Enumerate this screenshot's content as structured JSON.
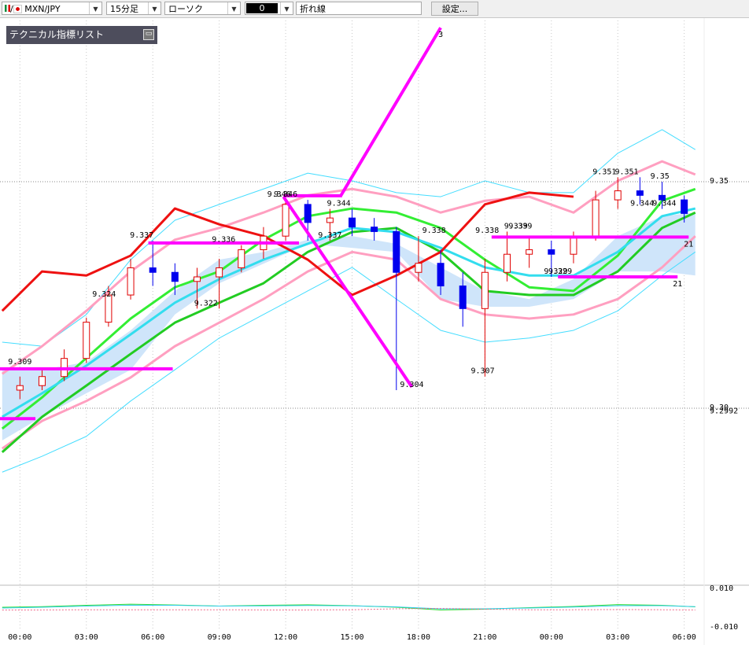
{
  "toolbar": {
    "pair": "MXN/JPY",
    "timeframe": "15分足",
    "chart_style": "ローソク",
    "number": "0",
    "line_tool": "折れ線",
    "settings": "設定..."
  },
  "panel": {
    "title": "テクニカル指標リスト"
  },
  "chart_data": {
    "type": "candlestick",
    "xlim": [
      -0.9,
      30.9
    ],
    "xticks": [
      {
        "value": 0,
        "label": "00:00"
      },
      {
        "value": 3,
        "label": "03:00"
      },
      {
        "value": 6,
        "label": "06:00"
      },
      {
        "value": 9,
        "label": "09:00"
      },
      {
        "value": 12,
        "label": "12:00"
      },
      {
        "value": 15,
        "label": "15:00"
      },
      {
        "value": 18,
        "label": "18:00"
      },
      {
        "value": 21,
        "label": "21:00"
      },
      {
        "value": 24,
        "label": "00:00"
      },
      {
        "value": 27,
        "label": "03:00"
      },
      {
        "value": 30,
        "label": "06:00"
      }
    ],
    "ylim": [
      9.2625,
      9.3863
    ],
    "yticks": [
      9.35,
      {
        "value": 9.3,
        "label": "9.30"
      }
    ],
    "last_price": 9.2992,
    "grid": true,
    "up_color": "#e00000",
    "down_color": "#0000ee",
    "candles": {
      "x": [
        0,
        1,
        2,
        3,
        4,
        5,
        6,
        7,
        8,
        9,
        10,
        11,
        12,
        13,
        14,
        15,
        16,
        17,
        18,
        19,
        20,
        21,
        22,
        23,
        24,
        25,
        26,
        27,
        28,
        29,
        30
      ],
      "open": [
        9.304,
        9.305,
        9.307,
        9.311,
        9.319,
        9.325,
        9.331,
        9.33,
        9.328,
        9.329,
        9.331,
        9.335,
        9.338,
        9.345,
        9.341,
        9.342,
        9.34,
        9.339,
        9.33,
        9.332,
        9.327,
        9.322,
        9.33,
        9.334,
        9.335,
        9.334,
        9.338,
        9.346,
        9.348,
        9.347,
        9.346
      ],
      "high": [
        9.307,
        9.309,
        9.313,
        9.32,
        9.327,
        9.333,
        9.337,
        9.332,
        9.331,
        9.333,
        9.336,
        9.34,
        9.346,
        9.346,
        9.344,
        9.344,
        9.342,
        9.34,
        9.338,
        9.335,
        9.33,
        9.333,
        9.339,
        9.338,
        9.337,
        9.339,
        9.348,
        9.351,
        9.351,
        9.35,
        9.347
      ],
      "low": [
        9.302,
        9.304,
        9.306,
        9.31,
        9.318,
        9.324,
        9.327,
        9.325,
        9.322,
        9.322,
        9.33,
        9.333,
        9.337,
        9.337,
        9.337,
        9.338,
        9.337,
        9.304,
        9.328,
        9.325,
        9.318,
        9.307,
        9.328,
        9.331,
        9.329,
        9.332,
        9.337,
        9.344,
        9.345,
        9.344,
        9.341
      ],
      "close": [
        9.305,
        9.307,
        9.311,
        9.319,
        9.325,
        9.331,
        9.33,
        9.328,
        9.329,
        9.331,
        9.335,
        9.338,
        9.345,
        9.341,
        9.342,
        9.34,
        9.339,
        9.33,
        9.332,
        9.327,
        9.322,
        9.33,
        9.334,
        9.335,
        9.334,
        9.338,
        9.346,
        9.348,
        9.347,
        9.346,
        9.343
      ]
    },
    "lines": {
      "x": [
        -0.8,
        1,
        3,
        5,
        7,
        9,
        11,
        13,
        15,
        17,
        19,
        21,
        23,
        25,
        27,
        29,
        30.5
      ],
      "series": [
        {
          "color": "#44ddff",
          "width": 1,
          "values": [
            9.3146,
            9.3137,
            9.3207,
            9.3328,
            9.3415,
            9.345,
            9.3484,
            9.3519,
            9.3502,
            9.3476,
            9.3467,
            9.3502,
            9.3476,
            9.3476,
            9.3563,
            9.3615,
            9.3571
          ]
        },
        {
          "color": "#44ddff",
          "width": 1,
          "values": [
            9.2859,
            9.2894,
            9.2938,
            9.3016,
            9.3085,
            9.3155,
            9.3207,
            9.3259,
            9.3311,
            9.3241,
            9.3172,
            9.3146,
            9.3155,
            9.3172,
            9.3215,
            9.3293,
            9.3345
          ]
        },
        {
          "color": "#ff9fc0",
          "width": 3,
          "values": [
            9.3076,
            9.3137,
            9.3215,
            9.3302,
            9.3372,
            9.3398,
            9.3432,
            9.347,
            9.3484,
            9.3467,
            9.3432,
            9.3458,
            9.3467,
            9.3432,
            9.3502,
            9.3545,
            9.3516
          ]
        },
        {
          "color": "#ff9fc0",
          "width": 3,
          "values": [
            9.2911,
            9.2972,
            9.3016,
            9.3068,
            9.3137,
            9.3189,
            9.3241,
            9.3302,
            9.3345,
            9.3328,
            9.3241,
            9.3207,
            9.3198,
            9.3207,
            9.3241,
            9.3311,
            9.338
          ]
        },
        {
          "color": "#22cc22",
          "width": 3,
          "values": [
            9.2903,
            9.2981,
            9.305,
            9.312,
            9.3189,
            9.3233,
            9.3276,
            9.3345,
            9.3389,
            9.3398,
            9.3345,
            9.3259,
            9.325,
            9.325,
            9.3302,
            9.3398,
            9.3432
          ]
        },
        {
          "color": "#33ee33",
          "width": 3,
          "values": [
            9.2955,
            9.3024,
            9.3111,
            9.3198,
            9.3267,
            9.3302,
            9.3372,
            9.3424,
            9.3441,
            9.3432,
            9.3398,
            9.3328,
            9.3267,
            9.3259,
            9.3337,
            9.3458,
            9.3484
          ]
        },
        {
          "color": "#33ddee",
          "width": 3,
          "values": [
            9.2981,
            9.3033,
            9.3094,
            9.3163,
            9.3233,
            9.3285,
            9.3328,
            9.3363,
            9.3398,
            9.3389,
            9.3354,
            9.3311,
            9.3293,
            9.3293,
            9.3345,
            9.3424,
            9.3441
          ]
        },
        {
          "color": "#ee1111",
          "width": 3,
          "values": [
            9.3215,
            9.3302,
            9.3293,
            9.3337,
            9.3441,
            9.3406,
            9.338,
            9.3328,
            9.325,
            9.3293,
            9.3345,
            9.345,
            9.3476,
            9.3467,
            null,
            null,
            null
          ]
        }
      ]
    },
    "cloud": {
      "color": "#cfe5fa",
      "upper": [
        9.3085,
        9.3085,
        9.3102,
        9.3172,
        9.3259,
        9.3328,
        9.3345,
        9.3372,
        9.338,
        9.3363,
        9.3311,
        9.3259,
        9.3241,
        9.3285,
        9.338,
        9.3424,
        9.3432
      ],
      "lower": [
        9.2929,
        9.2981,
        9.3033,
        9.3085,
        9.3207,
        9.3276,
        9.3319,
        9.3363,
        9.3354,
        9.3345,
        9.3241,
        9.3224,
        9.3224,
        9.3241,
        9.3302,
        9.3302,
        9.3293
      ]
    },
    "drawings": [
      {
        "color": "#ff00ff",
        "x": [
          -0.9,
          6.9
        ],
        "y": [
          9.3087,
          9.3087
        ]
      },
      {
        "color": "#ff00ff",
        "x": [
          -0.9,
          0.7
        ],
        "y": [
          9.2977,
          9.2977
        ]
      },
      {
        "color": "#ff00ff",
        "x": [
          5.8,
          12.6
        ],
        "y": [
          9.3365,
          9.3365
        ]
      },
      {
        "color": "#ff00ff",
        "x": [
          11.9,
          14.55
        ],
        "y": [
          9.3469,
          9.3469
        ]
      },
      {
        "color": "#ff00ff",
        "x": [
          14.5,
          19.0
        ],
        "y": [
          9.347,
          9.384
        ],
        "label": "3"
      },
      {
        "color": "#ff00ff",
        "x": [
          11.9,
          17.7
        ],
        "y": [
          9.3467,
          9.3047
        ]
      },
      {
        "color": "#ff00ff",
        "x": [
          21.3,
          30.2
        ],
        "y": [
          9.3378,
          9.3378
        ],
        "label": "21"
      },
      {
        "color": "#ff00ff",
        "x": [
          24.3,
          29.7
        ],
        "y": [
          9.329,
          9.329
        ],
        "label": "21"
      }
    ],
    "annotations": [
      {
        "x": 11.7,
        "y": 9.346
      },
      {
        "x": 12.0,
        "y": 9.346
      },
      {
        "x": 14.4,
        "y": 9.344
      },
      {
        "x": 5.5,
        "y": 9.337
      },
      {
        "x": 14.0,
        "y": 9.337
      },
      {
        "x": 9.2,
        "y": 9.336
      },
      {
        "x": 18.7,
        "y": 9.338
      },
      {
        "x": 21.1,
        "y": 9.338
      },
      {
        "x": 22.6,
        "y": 9.339
      },
      {
        "x": 22.4,
        "y": 9.339
      },
      {
        "x": 24.2,
        "y": 9.329
      },
      {
        "x": 24.4,
        "y": 9.329
      },
      {
        "x": 3.8,
        "y": 9.324
      },
      {
        "x": 8.4,
        "y": 9.322
      },
      {
        "x": 0.0,
        "y": 9.309
      },
      {
        "x": 17.7,
        "y": 9.304
      },
      {
        "x": 20.9,
        "y": 9.307
      },
      {
        "x": 26.4,
        "y": 9.351
      },
      {
        "x": 27.4,
        "y": 9.351
      },
      {
        "x": 28.9,
        "y": 9.35
      },
      {
        "x": 28.1,
        "y": 9.344
      },
      {
        "x": 29.1,
        "y": 9.344
      }
    ],
    "oscillator": {
      "ylim": [
        -0.01,
        0.01
      ],
      "yticks": [
        {
          "value": 0.01,
          "label": "0.010"
        },
        {
          "value": -0.01,
          "label": "-0.010"
        }
      ],
      "series": [
        {
          "color": "#33dd33",
          "values": [
            0.0002,
            0.0005,
            0.0012,
            0.0018,
            0.0014,
            0.0008,
            0.0012,
            0.0015,
            0.001,
            0.0002,
            -0.0012,
            -0.0008,
            0.0,
            0.0006,
            0.0016,
            0.0012,
            0.0004
          ]
        },
        {
          "color": "#33ccee",
          "values": [
            -0.0002,
            0.0002,
            0.0008,
            0.0013,
            0.0012,
            0.0008,
            0.0009,
            0.0011,
            0.0009,
            0.0004,
            -0.0006,
            -0.0006,
            -0.0002,
            0.0003,
            0.001,
            0.001,
            0.0005
          ]
        },
        {
          "color": "#ee6688",
          "values": [
            -0.0012,
            -0.0012,
            -0.0011,
            -0.0011,
            -0.0011,
            -0.0011,
            -0.0012,
            -0.0012,
            -0.0011,
            -0.0006,
            -0.0004,
            -0.0008,
            -0.0011,
            -0.0011,
            -0.001,
            -0.0011,
            -0.0012
          ]
        }
      ]
    }
  }
}
